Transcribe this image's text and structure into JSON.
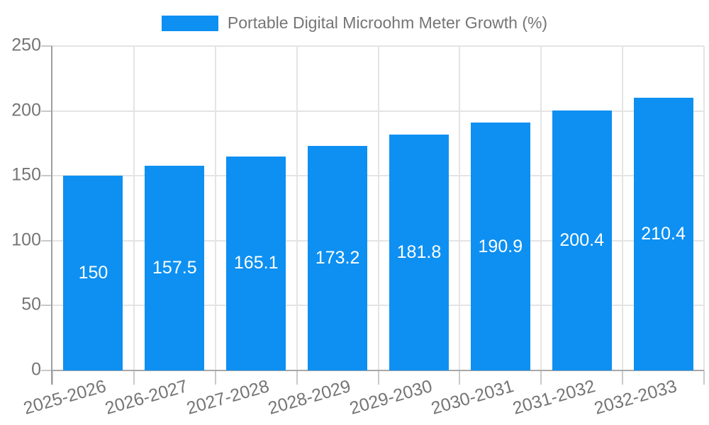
{
  "legend": {
    "label": "Portable Digital Microohm Meter Growth (%)"
  },
  "chart_data": {
    "type": "bar",
    "title": "Portable Digital Microohm Meter Growth (%)",
    "categories": [
      "2025-2026",
      "2026-2027",
      "2027-2028",
      "2028-2029",
      "2029-2030",
      "2030-2031",
      "2031-2032",
      "2032-2033"
    ],
    "values": [
      150,
      157.5,
      165.1,
      173.2,
      181.8,
      190.9,
      200.4,
      210.4
    ],
    "value_labels": [
      "150",
      "157.5",
      "165.1",
      "173.2",
      "181.8",
      "190.9",
      "200.4",
      "210.4"
    ],
    "xlabel": "",
    "ylabel": "",
    "ylim": [
      0,
      250
    ],
    "yticks": [
      0,
      50,
      100,
      150,
      200,
      250
    ],
    "ytick_labels": [
      "0",
      "50",
      "100",
      "150",
      "200",
      "250"
    ],
    "grid": true,
    "legend_position": "top",
    "bar_color": "#0D90F2",
    "value_label_color": "#FFFFFF",
    "axis_text_color": "#757575",
    "gridline_color": "#E4E4E4",
    "axis_line_color": "#9E9E9E"
  }
}
